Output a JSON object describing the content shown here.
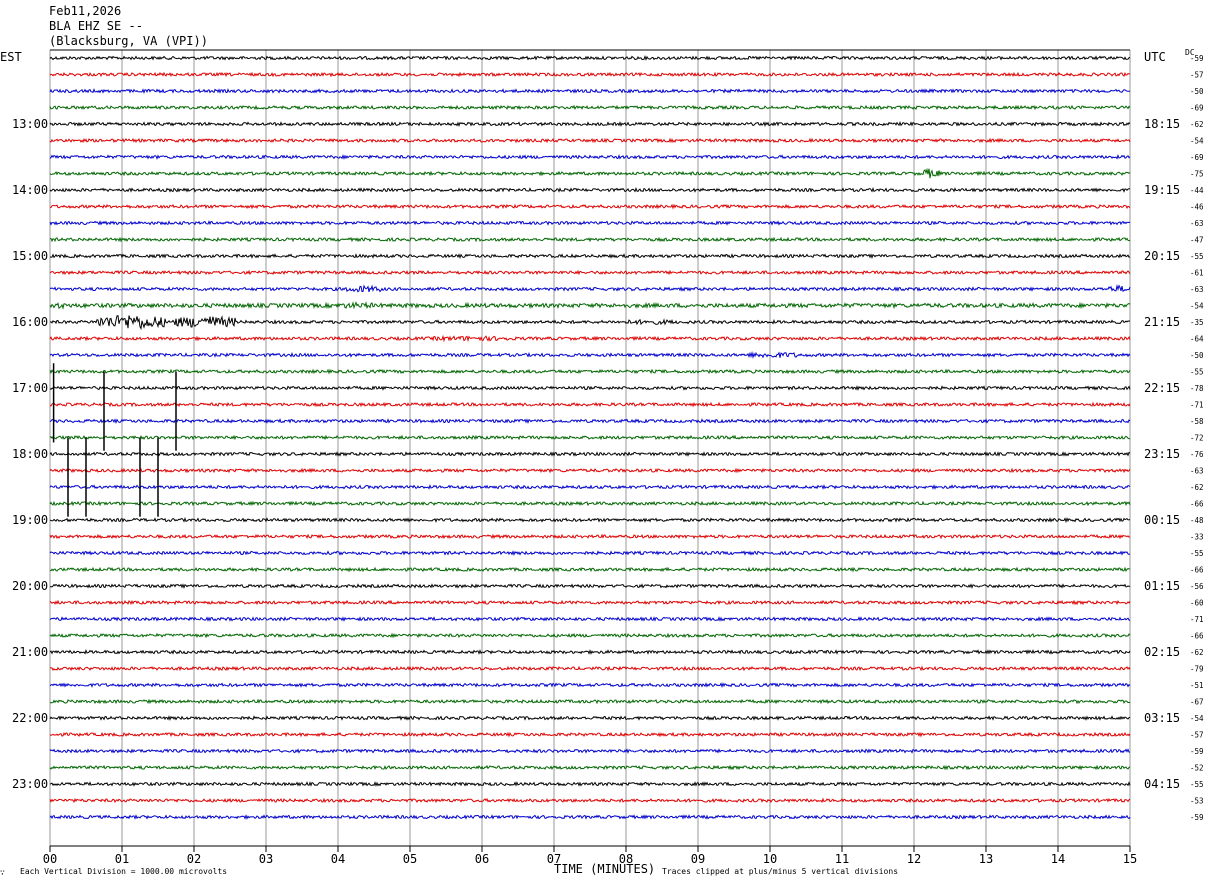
{
  "header": {
    "date": "Feb11,2026",
    "station": "BLA EHZ SE --",
    "location": "(Blacksburg, VA (VPI))"
  },
  "labels": {
    "left_zone": "EST",
    "right_zone": "UTC",
    "dc_header": "DC",
    "xlabel": "TIME (MINUTES)",
    "scale_note": "Each Vertical Division = 1000.00 microvolts",
    "clip_note": "Traces clipped at plus/minus 5 vertical divisions",
    "corner_mark": "∵"
  },
  "colors": {
    "trace_cycle": [
      "#000000",
      "#dd0000",
      "#0000cc",
      "#006600"
    ],
    "grid": "#999999"
  },
  "chart_data": {
    "type": "line",
    "description_type": "helicorder",
    "x_ticks": [
      "00",
      "01",
      "02",
      "03",
      "04",
      "05",
      "06",
      "07",
      "08",
      "09",
      "10",
      "11",
      "12",
      "13",
      "14",
      "15"
    ],
    "xlim": [
      0,
      15
    ],
    "rows_per_hour": 4,
    "minutes_per_row": 15,
    "left_hour_labels": [
      "13:00",
      "14:00",
      "15:00",
      "16:00",
      "17:00",
      "18:00",
      "19:00",
      "20:00",
      "21:00",
      "22:00",
      "23:00"
    ],
    "right_hour_labels": [
      "18:15",
      "19:15",
      "20:15",
      "21:15",
      "22:15",
      "23:15",
      "00:15",
      "01:15",
      "02:15",
      "03:15",
      "04:15"
    ],
    "dc_offsets": [
      "-59",
      "-57",
      "-50",
      "-69",
      "-62",
      "-54",
      "-69",
      "-75",
      "-44",
      "-46",
      "-63",
      "-47",
      "-55",
      "-61",
      "-63",
      "-54",
      "-35",
      "-64",
      "-50",
      "-55",
      "-78",
      "-71",
      "-58",
      "-72",
      "-76",
      "-63",
      "-62",
      "-66",
      "-48",
      "-33",
      "-55",
      "-66",
      "-56",
      "-60",
      "-71",
      "-66",
      "-62",
      "-79",
      "-51",
      "-67",
      "-54",
      "-57",
      "-59",
      "-52",
      "-55",
      "-53",
      "-59"
    ],
    "noise_level": [
      3,
      3,
      3,
      3,
      3,
      3,
      3,
      3,
      3,
      3,
      3,
      3,
      3,
      3,
      3,
      4,
      3,
      3,
      3,
      3,
      3,
      3,
      3,
      3,
      3,
      3,
      3,
      3,
      3,
      3,
      3,
      3,
      3,
      3,
      3,
      3,
      3,
      3,
      3,
      3,
      3,
      3,
      3,
      3,
      3,
      3,
      3
    ],
    "events": [
      {
        "row": 7,
        "start_min": 12.1,
        "end_min": 12.35,
        "amp": 10
      },
      {
        "row": 14,
        "start_min": 4.1,
        "end_min": 4.6,
        "amp": 7
      },
      {
        "row": 14,
        "start_min": 14.7,
        "end_min": 15.0,
        "amp": 7
      },
      {
        "row": 15,
        "start_min": 0.0,
        "end_min": 0.25,
        "amp": 6
      },
      {
        "row": 15,
        "start_min": 4.0,
        "end_min": 4.5,
        "amp": 6
      },
      {
        "row": 16,
        "start_min": 0.65,
        "end_min": 1.6,
        "amp": 16
      },
      {
        "row": 16,
        "start_min": 1.7,
        "end_min": 2.6,
        "amp": 13
      },
      {
        "row": 16,
        "start_min": 8.0,
        "end_min": 8.7,
        "amp": 5
      },
      {
        "row": 17,
        "start_min": 5.3,
        "end_min": 6.4,
        "amp": 5
      },
      {
        "row": 18,
        "start_min": 9.7,
        "end_min": 10.4,
        "amp": 6
      }
    ],
    "spikes": [
      {
        "row": 18.5,
        "minute": 0.05,
        "length_rows": 6.0
      },
      {
        "row": 19.0,
        "minute": 0.75,
        "length_rows": 6.0
      },
      {
        "row": 19.0,
        "minute": 1.75,
        "length_rows": 6.0
      },
      {
        "row": 23.0,
        "minute": 0.25,
        "length_rows": 6.0
      },
      {
        "row": 23.0,
        "minute": 0.5,
        "length_rows": 6.0
      },
      {
        "row": 23.0,
        "minute": 1.25,
        "length_rows": 6.0
      },
      {
        "row": 23.0,
        "minute": 1.5,
        "length_rows": 6.0
      }
    ]
  }
}
